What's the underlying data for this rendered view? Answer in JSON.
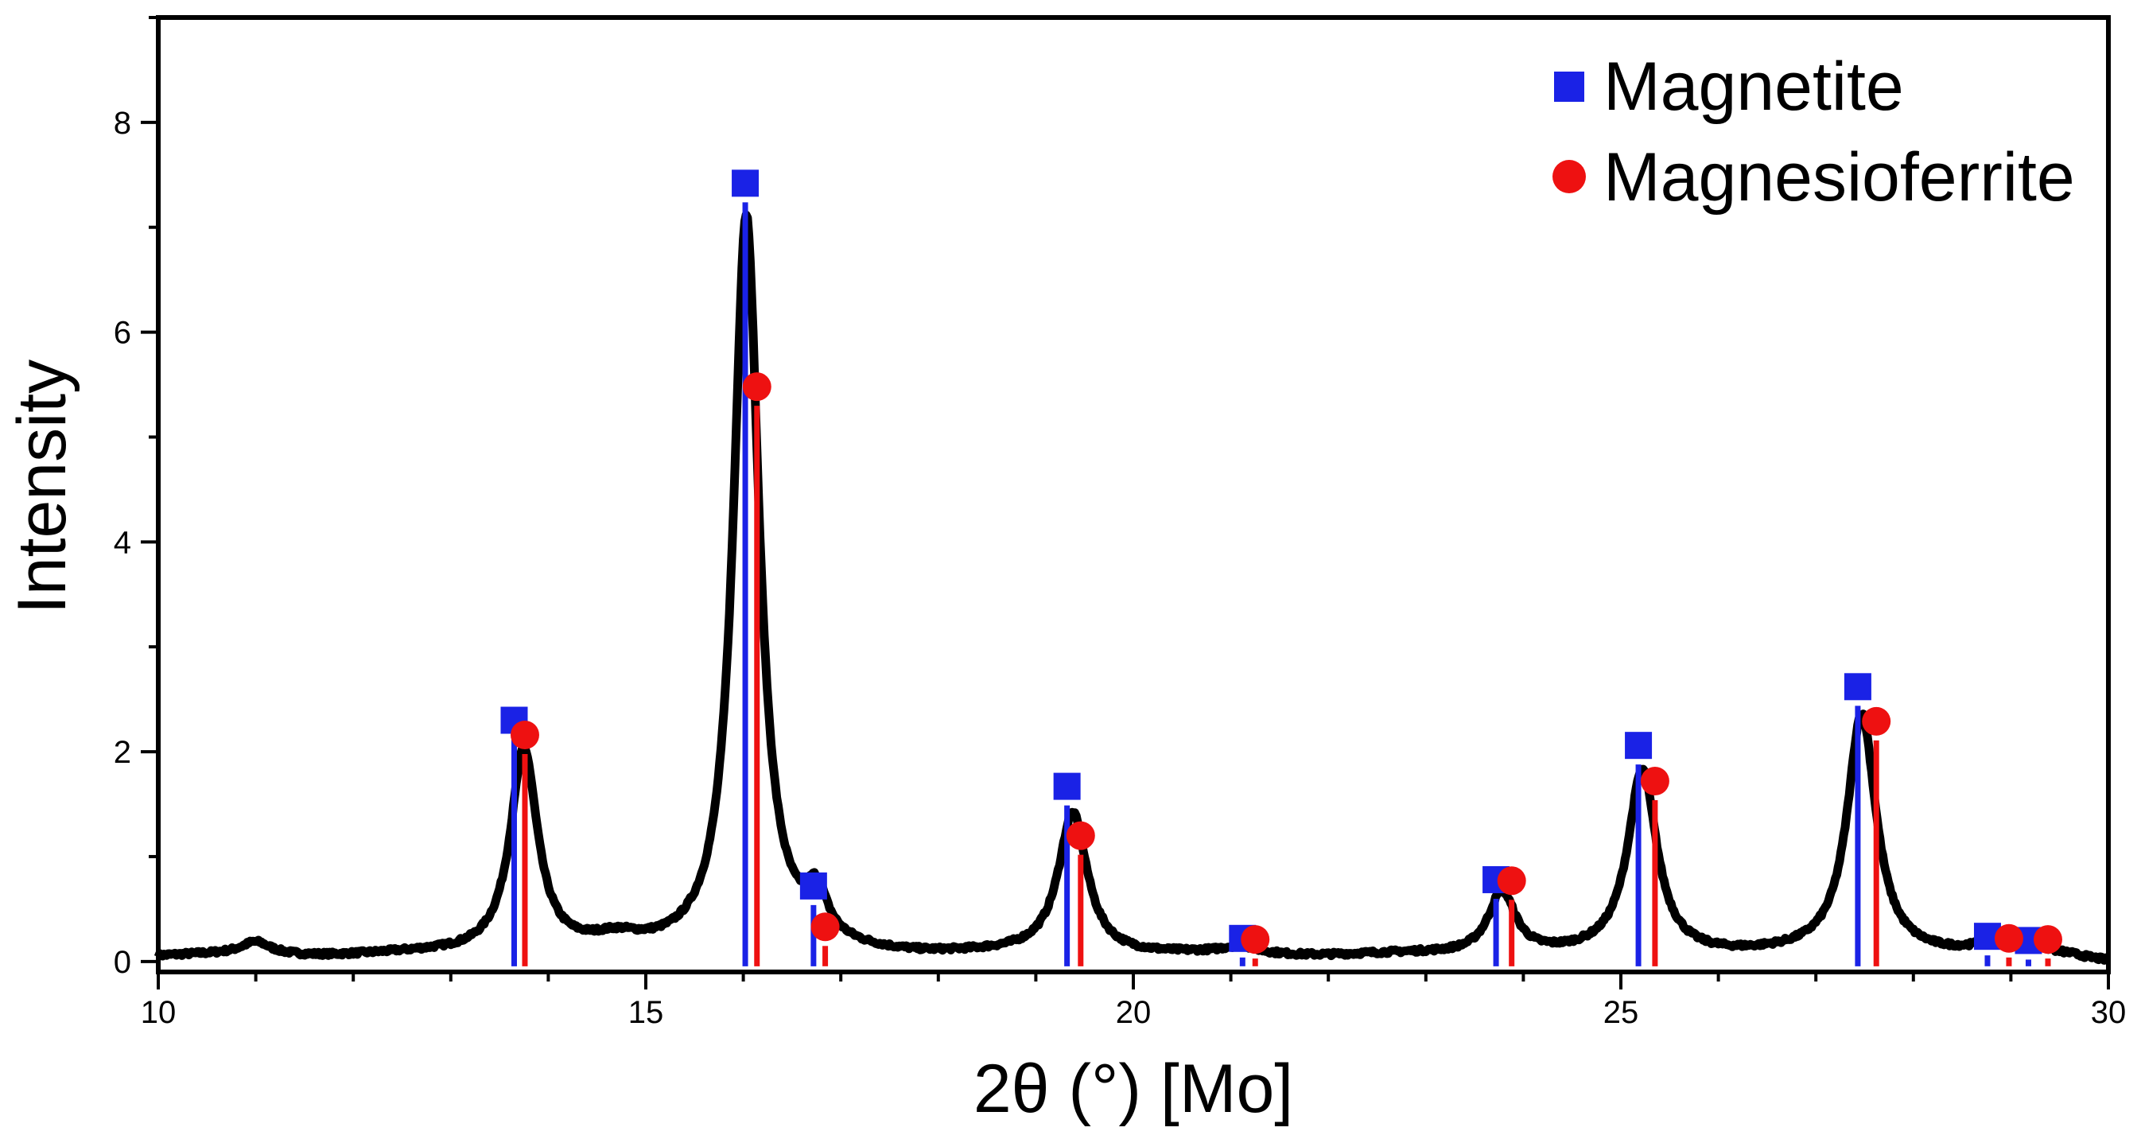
{
  "chart_data": {
    "type": "line",
    "title": "",
    "xlabel": "2θ (°) [Mo]",
    "ylabel": "Intensity",
    "xlim": [
      10,
      30
    ],
    "ylim": [
      -0.1,
      9.0
    ],
    "x_ticks": [
      10,
      15,
      20,
      25,
      30
    ],
    "y_ticks": [
      0,
      2,
      4,
      6,
      8
    ],
    "grid": false,
    "legend_position": "top-right",
    "colors": {
      "pattern": "#000000",
      "magnetite": "#1a22e6",
      "magnesioferrite": "#ee1111"
    },
    "pattern_peaks": [
      {
        "center": 11.0,
        "height": 0.12,
        "width": 0.18
      },
      {
        "center": 13.75,
        "height": 1.95,
        "width": 0.17
      },
      {
        "center": 14.7,
        "height": 0.1,
        "width": 0.3
      },
      {
        "center": 16.03,
        "height": 7.05,
        "width": 0.16
      },
      {
        "center": 16.75,
        "height": 0.42,
        "width": 0.13
      },
      {
        "center": 19.38,
        "height": 1.35,
        "width": 0.18
      },
      {
        "center": 21.1,
        "height": 0.07,
        "width": 0.2
      },
      {
        "center": 23.78,
        "height": 0.6,
        "width": 0.17
      },
      {
        "center": 25.22,
        "height": 1.75,
        "width": 0.18
      },
      {
        "center": 27.47,
        "height": 2.3,
        "width": 0.18
      },
      {
        "center": 28.8,
        "height": 0.08,
        "width": 0.2
      },
      {
        "center": 29.2,
        "height": 0.08,
        "width": 0.2
      }
    ],
    "series": [
      {
        "name": "Magnetite",
        "marker": "square",
        "x": [
          13.65,
          16.02,
          16.72,
          19.32,
          21.12,
          23.72,
          25.18,
          27.43,
          28.76,
          29.18
        ],
        "y": [
          2.3,
          7.42,
          0.72,
          1.67,
          0.22,
          0.78,
          2.06,
          2.62,
          0.24,
          0.2
        ]
      },
      {
        "name": "Magnesioferrite",
        "marker": "circle",
        "x": [
          13.76,
          16.14,
          16.84,
          19.46,
          21.25,
          23.88,
          25.35,
          27.62,
          28.98,
          29.38
        ],
        "y": [
          2.16,
          5.48,
          0.33,
          1.2,
          0.21,
          0.77,
          1.72,
          2.29,
          0.22,
          0.21
        ]
      }
    ]
  }
}
